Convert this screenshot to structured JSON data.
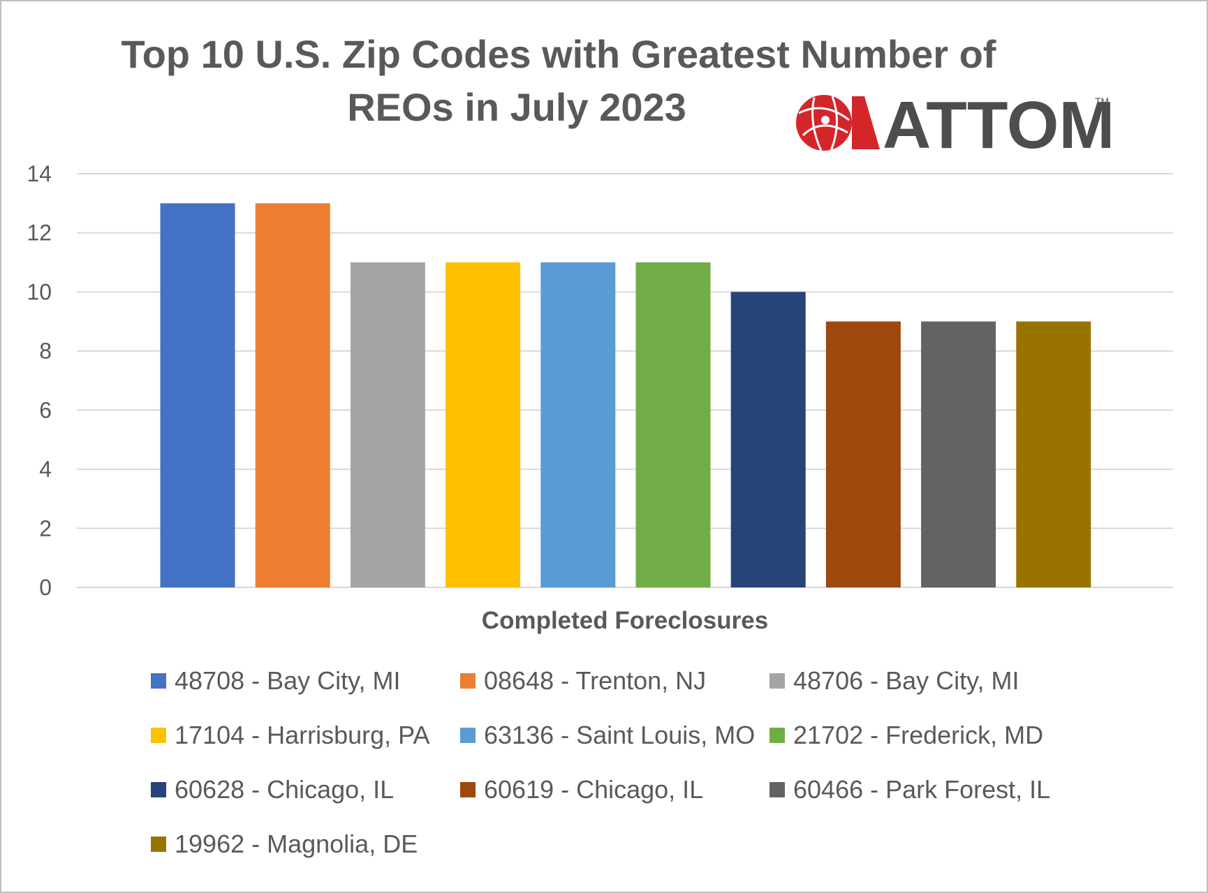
{
  "chart_data": {
    "type": "bar",
    "title": "Top 10 U.S. Zip Codes with Greatest Number of REOs in July 2023",
    "title_lines": [
      "Top 10 U.S. Zip Codes with Greatest Number of",
      "REOs in July 2023"
    ],
    "xlabel": "Completed Foreclosures",
    "ylabel": "",
    "ylim": [
      0,
      14
    ],
    "yticks": [
      0,
      2,
      4,
      6,
      8,
      10,
      12,
      14
    ],
    "grid": true,
    "legend_position": "bottom",
    "series": [
      {
        "name": "48708 - Bay City, MI",
        "value": 13,
        "color": "#4472C4"
      },
      {
        "name": "08648 - Trenton, NJ",
        "value": 13,
        "color": "#ED7D31"
      },
      {
        "name": "48706 - Bay City, MI",
        "value": 11,
        "color": "#A5A5A5"
      },
      {
        "name": "17104 - Harrisburg, PA",
        "value": 11,
        "color": "#FFC000"
      },
      {
        "name": "63136 - Saint Louis, MO",
        "value": 11,
        "color": "#5B9BD5"
      },
      {
        "name": "21702 - Frederick, MD",
        "value": 11,
        "color": "#70AD47"
      },
      {
        "name": "60628 - Chicago, IL",
        "value": 10,
        "color": "#264478"
      },
      {
        "name": "60619 - Chicago, IL",
        "value": 9,
        "color": "#9E480E"
      },
      {
        "name": "60466 - Park Forest, IL",
        "value": 9,
        "color": "#636363"
      },
      {
        "name": "19962 - Magnolia, DE",
        "value": 9,
        "color": "#997300"
      }
    ]
  },
  "logo": {
    "text": "ATTOM",
    "trademark": "TM",
    "icon": "attom-globe-icon",
    "accent_color": "#D3262B",
    "text_color": "#4d4d4d"
  }
}
